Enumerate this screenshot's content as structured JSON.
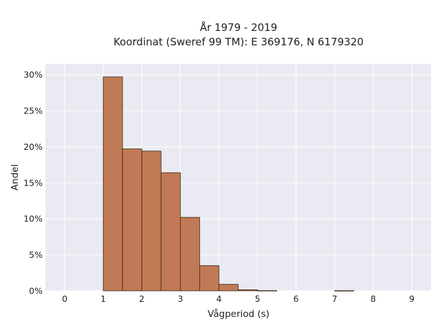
{
  "chart_data": {
    "type": "bar",
    "title": [
      "År 1979 - 2019",
      "Koordinat (Sweref 99 TM): E 369176, N 6179320"
    ],
    "xlabel": "Vågperiod (s)",
    "ylabel": "Andel",
    "xlim": [
      -0.5,
      9.5
    ],
    "ylim": [
      0,
      0.315
    ],
    "x_ticks": [
      0,
      1,
      2,
      3,
      4,
      5,
      6,
      7,
      8,
      9
    ],
    "y_ticks": [
      0,
      0.05,
      0.1,
      0.15,
      0.2,
      0.25,
      0.3
    ],
    "y_tick_labels": [
      "0%",
      "5%",
      "10%",
      "15%",
      "20%",
      "25%",
      "30%"
    ],
    "grid": true,
    "bin_width": 0.5,
    "bins": [
      {
        "start": 1.0,
        "value": 0.297
      },
      {
        "start": 1.5,
        "value": 0.197
      },
      {
        "start": 2.0,
        "value": 0.194
      },
      {
        "start": 2.5,
        "value": 0.164
      },
      {
        "start": 3.0,
        "value": 0.102
      },
      {
        "start": 3.5,
        "value": 0.035
      },
      {
        "start": 4.0,
        "value": 0.009
      },
      {
        "start": 4.5,
        "value": 0.0015
      },
      {
        "start": 5.0,
        "value": 0.0003
      },
      {
        "start": 7.0,
        "value": 0.0002
      }
    ],
    "colors": {
      "bar_fill": "#c07a55",
      "bar_edge": "#3b2418",
      "plot_background": "#eaeaf2",
      "grid": "#ffffff",
      "text": "#222222"
    }
  }
}
